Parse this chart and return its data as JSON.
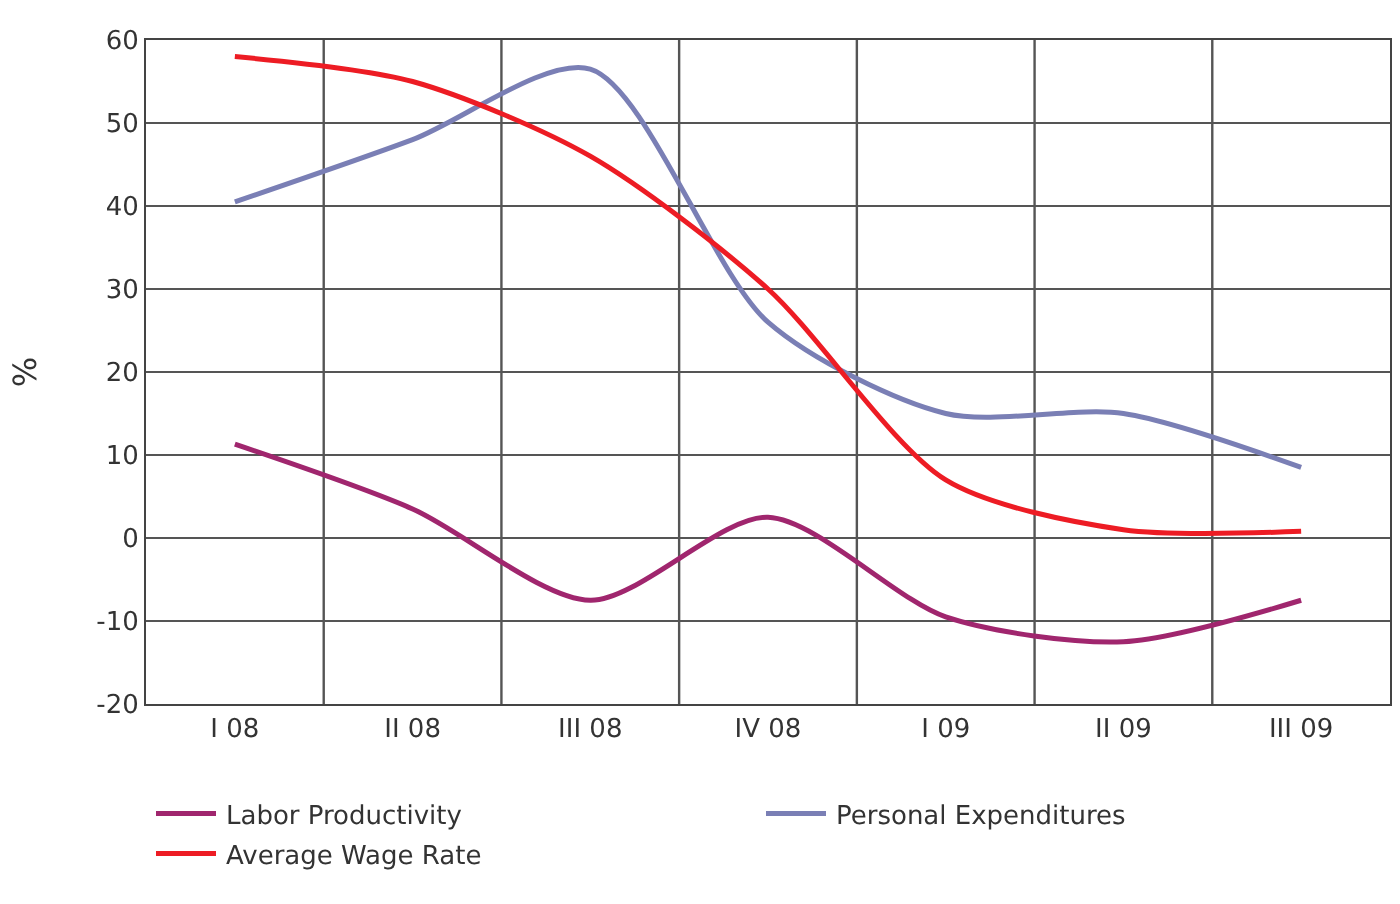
{
  "chart_data": {
    "type": "line",
    "ylabel": "%",
    "categories": [
      "I 08",
      "II 08",
      "III 08",
      "IV 08",
      "I 09",
      "II 09",
      "III 09"
    ],
    "ylim": [
      -20,
      60
    ],
    "yticks": [
      -20,
      -10,
      0,
      10,
      20,
      30,
      40,
      50,
      60
    ],
    "grid": true,
    "legend": "bottom",
    "line_style": "solid",
    "series": [
      {
        "name": "Labor Productivity",
        "color": "#a0266e",
        "values": [
          11.3,
          3.5,
          -7.5,
          2.5,
          -9.5,
          -12.5,
          -7.5
        ]
      },
      {
        "name": "Personal Expenditures",
        "color": "#7a7fb5",
        "values": [
          40.5,
          48,
          56.5,
          26,
          15,
          15,
          8.5
        ]
      },
      {
        "name": "Average Wage Rate",
        "color": "#ed1c24",
        "values": [
          58,
          55,
          46,
          30,
          7,
          1,
          0.8
        ]
      }
    ]
  }
}
